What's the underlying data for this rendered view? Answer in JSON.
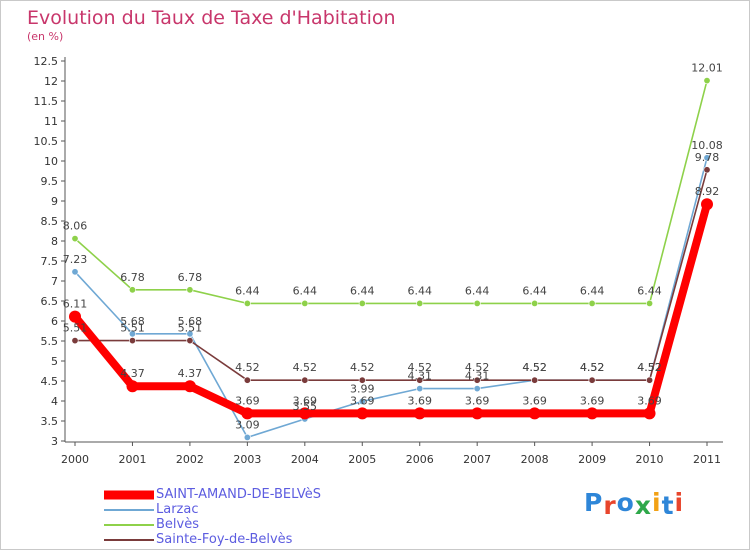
{
  "title": "Evolution du Taux de Taxe d'Habitation",
  "subtitle": "(en %)",
  "logo": {
    "text": "Proxiti",
    "colors": [
      "#2e86d8",
      "#e8452c",
      "#2e86d8",
      "#2ea84a",
      "#f2a115",
      "#2e86d8",
      "#e8452c"
    ]
  },
  "chart_data": {
    "type": "line",
    "title": "Evolution du Taux de Taxe d'Habitation",
    "ylabel": "(en %)",
    "xlabel": "",
    "x": [
      "2000",
      "2001",
      "2002",
      "2003",
      "2004",
      "2005",
      "2006",
      "2007",
      "2008",
      "2009",
      "2010",
      "2011"
    ],
    "ylim": [
      3,
      12.5
    ],
    "yticks": [
      "3",
      "3.5",
      "4",
      "4.5",
      "5",
      "5.5",
      "6",
      "6.5",
      "7",
      "7.5",
      "8",
      "8.5",
      "9",
      "9.5",
      "10",
      "10.5",
      "11",
      "11.5",
      "12",
      "12.5"
    ],
    "grid": false,
    "legend_position": "bottom-left",
    "series": [
      {
        "name": "Belvès",
        "color": "#8ed14a",
        "values": [
          8.06,
          6.78,
          6.78,
          6.44,
          6.44,
          6.44,
          6.44,
          6.44,
          6.44,
          6.44,
          6.44,
          12.01
        ],
        "labels": [
          "8.06",
          "6.78",
          "6.78",
          "6.44",
          "6.44",
          "6.44",
          "6.44",
          "6.44",
          "6.44",
          "6.44",
          "6.44",
          "12.01"
        ]
      },
      {
        "name": "Larzac",
        "color": "#6fa8d4",
        "values": [
          7.23,
          5.68,
          5.68,
          3.09,
          3.55,
          3.99,
          4.31,
          4.31,
          4.52,
          4.52,
          4.52,
          10.08
        ],
        "labels": [
          "7.23",
          "5.68",
          "5.68",
          "3.09",
          "3.55",
          "3.99",
          "4.31",
          "4.31",
          "4.52",
          "4.52",
          "4.52",
          "10.08"
        ]
      },
      {
        "name": "Sainte-Foy-de-Belvès",
        "color": "#7a3b3b",
        "values": [
          5.51,
          5.51,
          5.51,
          4.52,
          4.52,
          4.52,
          4.52,
          4.52,
          4.52,
          4.52,
          4.52,
          9.78
        ],
        "labels": [
          "5.51",
          "5.51",
          "5.51",
          "4.52",
          "4.52",
          "4.52",
          "4.52",
          "4.52",
          "4.52",
          "4.52",
          "4.52",
          "9.78"
        ]
      },
      {
        "name": "SAINT-AMAND-DE-BELVèS",
        "color": "#ff0000",
        "values": [
          6.11,
          4.37,
          4.37,
          3.69,
          3.69,
          3.69,
          3.69,
          3.69,
          3.69,
          3.69,
          3.69,
          8.92
        ],
        "labels": [
          "6.11",
          "4.37",
          "4.37",
          "3.69",
          "3.69",
          "3.69",
          "3.69",
          "3.69",
          "3.69",
          "3.69",
          "3.69",
          "8.92"
        ]
      }
    ],
    "legend": [
      {
        "name": "SAINT-AMAND-DE-BELVèS",
        "color": "#ff0000"
      },
      {
        "name": "Larzac",
        "color": "#6fa8d4"
      },
      {
        "name": "Belvès",
        "color": "#8ed14a"
      },
      {
        "name": "Sainte-Foy-de-Belvès",
        "color": "#7a3b3b"
      }
    ]
  }
}
